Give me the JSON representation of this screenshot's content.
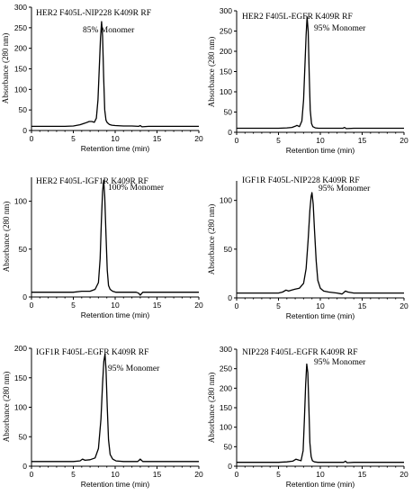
{
  "chart_data": [
    {
      "type": "line",
      "title": "HER2 F405L-NIP228 K409R RF",
      "annotation": "85% Monomer",
      "xlabel": "Retention time (min)",
      "ylabel": "Absorbance (280 nm)",
      "xlim": [
        0,
        20
      ],
      "ylim": [
        0,
        300
      ],
      "xticks": [
        0,
        5,
        10,
        15,
        20
      ],
      "yticks": [
        0,
        50,
        100,
        150,
        200,
        250,
        300
      ],
      "series": [
        {
          "x": [
            0,
            2,
            4,
            5,
            5.8,
            6.4,
            6.9,
            7.2,
            7.5,
            7.75,
            7.95,
            8.1,
            8.25,
            8.38,
            8.5,
            8.62,
            8.75,
            8.9,
            9.05,
            9.3,
            9.6,
            10,
            11,
            12,
            12.8,
            13,
            13.2,
            14,
            16,
            18,
            20
          ],
          "y": [
            10,
            10,
            10,
            11,
            14,
            18,
            22,
            22,
            20,
            30,
            75,
            150,
            225,
            265,
            230,
            130,
            50,
            25,
            19,
            15,
            13,
            12,
            11,
            11,
            10,
            12,
            9,
            10,
            10,
            10,
            10
          ]
        }
      ]
    },
    {
      "type": "line",
      "title": "HER2 F405L-EGFR K409R RF",
      "annotation": "95%  Monomer",
      "xlabel": "Retention time (min)",
      "ylabel": "Absorbance (280 nm)",
      "xlim": [
        0,
        20
      ],
      "ylim": [
        0,
        300
      ],
      "xticks": [
        0,
        5,
        10,
        15,
        20
      ],
      "yticks": [
        0,
        50,
        100,
        150,
        200,
        250,
        300
      ],
      "series": [
        {
          "x": [
            0,
            2,
            4,
            5,
            6,
            6.6,
            7,
            7.2,
            7.5,
            7.8,
            8.0,
            8.15,
            8.3,
            8.42,
            8.55,
            8.68,
            8.8,
            8.95,
            9.1,
            9.4,
            9.8,
            10.5,
            12,
            12.7,
            12.9,
            13.1,
            14,
            16,
            18,
            20
          ],
          "y": [
            10,
            10,
            10,
            10,
            11,
            12,
            15,
            17,
            14,
            28,
            80,
            160,
            240,
            285,
            250,
            140,
            55,
            22,
            14,
            11,
            10,
            10,
            10,
            10,
            12,
            9,
            10,
            10,
            10,
            10
          ]
        }
      ]
    },
    {
      "type": "line",
      "title": "HER2 F405L-IGF1R K409R RF",
      "annotation": "100%  Monomer",
      "xlabel": "Retention time (min)",
      "ylabel": "Absorbance (280 nm)",
      "xlim": [
        0,
        20
      ],
      "ylim": [
        0,
        125
      ],
      "xticks": [
        0,
        5,
        10,
        15,
        20
      ],
      "yticks": [
        0,
        50,
        100
      ],
      "series": [
        {
          "x": [
            0,
            2,
            4,
            5,
            6,
            7,
            7.6,
            8.0,
            8.2,
            8.35,
            8.5,
            8.62,
            8.75,
            8.9,
            9.05,
            9.2,
            9.4,
            9.7,
            10.1,
            11,
            12,
            12.5,
            12.8,
            13.0,
            13.3,
            14,
            16,
            18,
            20
          ],
          "y": [
            5,
            5,
            5,
            5,
            6,
            6,
            8,
            15,
            40,
            80,
            110,
            122,
            105,
            65,
            28,
            12,
            8,
            6,
            5,
            5,
            5,
            5,
            4,
            2,
            5,
            5,
            5,
            5,
            5
          ]
        }
      ]
    },
    {
      "type": "line",
      "title": "IGF1R F405L-NIP228 K409R RF",
      "annotation": "95%  Monomer",
      "xlabel": "Retention time (min)",
      "ylabel": "Absorbance (280 nm)",
      "xlim": [
        0,
        20
      ],
      "ylim": [
        0,
        120
      ],
      "xticks": [
        0,
        5,
        10,
        15,
        20
      ],
      "yticks": [
        0,
        50,
        100
      ],
      "series": [
        {
          "x": [
            0,
            2,
            4,
            5,
            5.5,
            5.9,
            6.2,
            6.6,
            7.0,
            7.5,
            8.0,
            8.3,
            8.55,
            8.75,
            8.9,
            9.0,
            9.15,
            9.3,
            9.5,
            9.7,
            10.0,
            10.4,
            11,
            12,
            12.6,
            13.0,
            13.3,
            14,
            16,
            18,
            20
          ],
          "y": [
            5,
            5,
            5,
            5,
            6,
            8,
            7,
            8,
            9,
            10,
            15,
            30,
            60,
            90,
            104,
            108,
            96,
            70,
            38,
            18,
            10,
            7,
            6,
            5,
            4,
            7,
            6,
            5,
            5,
            5,
            5
          ]
        }
      ]
    },
    {
      "type": "line",
      "title": "IGF1R F405L-EGFR K409R RF",
      "annotation": "95%  Monomer",
      "xlabel": "Retention time (min)",
      "ylabel": "Absorbance (280 nm)",
      "xlim": [
        0,
        20
      ],
      "ylim": [
        0,
        200
      ],
      "xticks": [
        0,
        5,
        10,
        15,
        20
      ],
      "yticks": [
        0,
        50,
        100,
        150,
        200
      ],
      "series": [
        {
          "x": [
            0,
            2,
            4,
            5,
            5.8,
            6.1,
            6.4,
            7.0,
            7.6,
            8.0,
            8.3,
            8.5,
            8.65,
            8.78,
            8.9,
            9.05,
            9.2,
            9.4,
            9.7,
            10.1,
            11,
            12,
            12.7,
            13.0,
            13.3,
            14,
            16,
            18,
            20
          ],
          "y": [
            8,
            8,
            8,
            8,
            9,
            12,
            10,
            11,
            14,
            30,
            80,
            140,
            178,
            190,
            165,
            100,
            45,
            20,
            12,
            9,
            8,
            8,
            8,
            12,
            8,
            8,
            8,
            8,
            8
          ]
        }
      ]
    },
    {
      "type": "line",
      "title": "NIP228 F405L-EGFR K409R RF",
      "annotation": "95% Monomer",
      "xlabel": "Retention time (min)",
      "ylabel": "Absorbance (280 nm)",
      "xlim": [
        0,
        20
      ],
      "ylim": [
        0,
        300
      ],
      "xticks": [
        0,
        5,
        10,
        15,
        20
      ],
      "yticks": [
        0,
        50,
        100,
        150,
        200,
        250,
        300
      ],
      "series": [
        {
          "x": [
            0,
            2,
            4,
            5,
            6,
            6.7,
            7.1,
            7.4,
            7.7,
            7.95,
            8.1,
            8.25,
            8.38,
            8.5,
            8.63,
            8.75,
            8.9,
            9.05,
            9.3,
            9.7,
            10.5,
            12,
            12.8,
            13.0,
            13.2,
            14,
            16,
            18,
            20
          ],
          "y": [
            10,
            10,
            10,
            10,
            11,
            13,
            18,
            16,
            14,
            40,
            120,
            210,
            262,
            240,
            150,
            60,
            25,
            14,
            11,
            10,
            10,
            10,
            10,
            13,
            9,
            10,
            10,
            10,
            10
          ]
        }
      ]
    }
  ]
}
